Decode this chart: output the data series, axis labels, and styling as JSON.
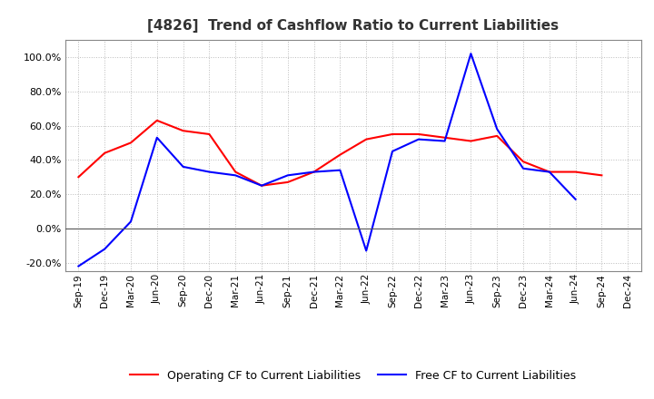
{
  "title": "[4826]  Trend of Cashflow Ratio to Current Liabilities",
  "x_labels": [
    "Sep-19",
    "Dec-19",
    "Mar-20",
    "Jun-20",
    "Sep-20",
    "Dec-20",
    "Mar-21",
    "Jun-21",
    "Sep-21",
    "Dec-21",
    "Mar-22",
    "Jun-22",
    "Sep-22",
    "Dec-22",
    "Mar-23",
    "Jun-23",
    "Sep-23",
    "Dec-23",
    "Mar-24",
    "Jun-24",
    "Sep-24",
    "Dec-24"
  ],
  "operating_cf": [
    30.0,
    44.0,
    50.0,
    63.0,
    57.0,
    55.0,
    33.0,
    25.0,
    27.0,
    33.0,
    43.0,
    52.0,
    55.0,
    55.0,
    53.0,
    51.0,
    54.0,
    39.0,
    33.0,
    33.0,
    31.0,
    null
  ],
  "free_cf": [
    -22.0,
    -12.0,
    4.0,
    53.0,
    36.0,
    33.0,
    31.0,
    25.0,
    31.0,
    33.0,
    34.0,
    -13.0,
    45.0,
    52.0,
    51.0,
    102.0,
    58.0,
    35.0,
    33.0,
    17.0,
    null,
    null
  ],
  "operating_color": "#ff0000",
  "free_color": "#0000ff",
  "ylim": [
    -25.0,
    110.0
  ],
  "yticks": [
    -20.0,
    0.0,
    20.0,
    40.0,
    60.0,
    80.0,
    100.0
  ],
  "legend_operating": "Operating CF to Current Liabilities",
  "legend_free": "Free CF to Current Liabilities",
  "bg_color": "#ffffff",
  "plot_bg_color": "#ffffff",
  "grid_color": "#bbbbbb"
}
